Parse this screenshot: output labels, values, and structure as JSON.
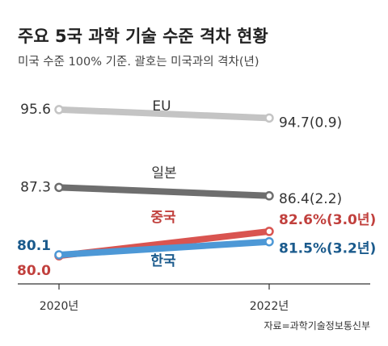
{
  "chart_data": {
    "type": "line",
    "title": "주요 5국 과학 기술 수준 격차 현황",
    "subtitle": "미국 수준 100% 기준. 괄호는 미국과의 격차(년)",
    "x": [
      "2020년",
      "2022년"
    ],
    "ylim": [
      77,
      98
    ],
    "series": [
      {
        "name": "EU",
        "values": [
          95.6,
          94.7
        ],
        "start_label": "95.6",
        "end_label": "94.7(0.9)",
        "color": "#c4c4c4",
        "text_color": "#333333"
      },
      {
        "name": "일본",
        "values": [
          87.3,
          86.4
        ],
        "start_label": "87.3",
        "end_label": "86.4(2.2)",
        "color": "#6e6e6e",
        "text_color": "#333333"
      },
      {
        "name": "중국",
        "values": [
          80.0,
          82.6
        ],
        "start_label": "80.0",
        "end_label": "82.6%(3.0년)",
        "color": "#d95450",
        "text_color": "#c1403d"
      },
      {
        "name": "한국",
        "values": [
          80.1,
          81.5
        ],
        "start_label": "80.1",
        "end_label": "81.5%(3.2년)",
        "color": "#4d98d6",
        "text_color": "#1a5a8c"
      }
    ],
    "source": "자료=과학기술정보통신부",
    "grid": false
  }
}
